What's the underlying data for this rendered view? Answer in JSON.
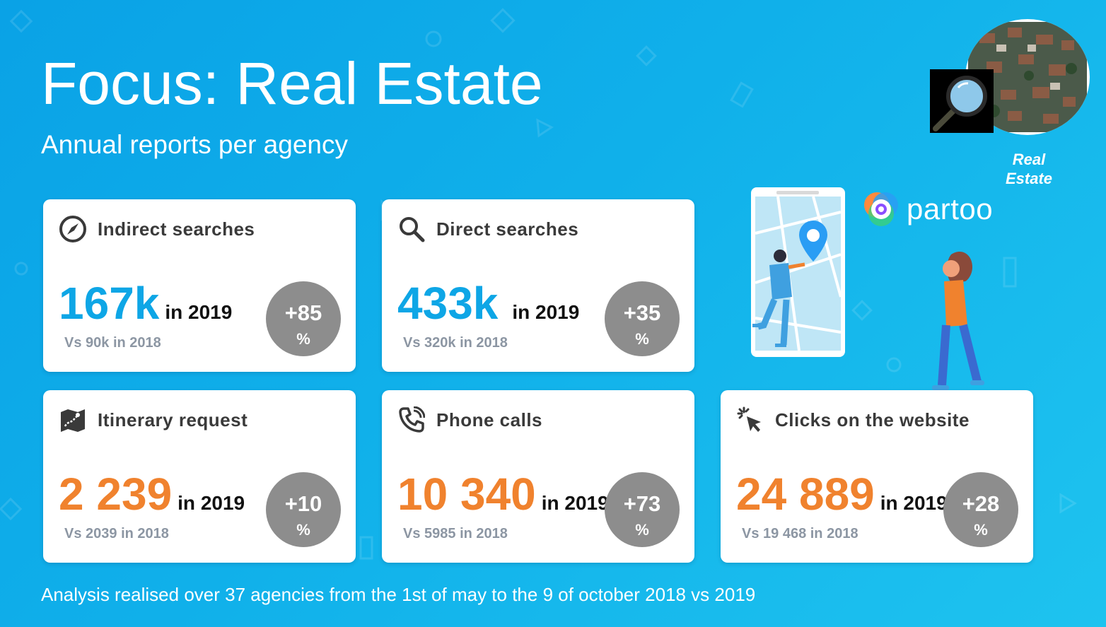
{
  "header": {
    "title": "Focus: Real Estate",
    "subtitle": "Annual reports per agency"
  },
  "footer": {
    "note": "Analysis realised over 37 agencies from the 1st of may to the 9 of october 2018 vs 2019"
  },
  "logo": {
    "caption_line1": "Real",
    "caption_line2": "Estate",
    "icon": "magnifier-icon"
  },
  "brand": {
    "name": "partoo"
  },
  "colors": {
    "background": "#10b0ea",
    "blue_value": "#0ea6e6",
    "orange_value": "#f0822e",
    "badge": "#8d8d8d"
  },
  "cards": [
    {
      "label": "Indirect searches",
      "icon": "compass-icon",
      "value": "167k",
      "year_text": "in 2019",
      "previous": "Vs 90k in 2018",
      "growth": "+85",
      "unit": "%",
      "color": "blue"
    },
    {
      "label": "Direct searches",
      "icon": "search-icon",
      "value": "433k",
      "year_text": "in 2019",
      "previous": "Vs 320k in 2018",
      "growth": "+35",
      "unit": "%",
      "color": "blue"
    },
    {
      "label": "Itinerary request",
      "icon": "map-icon",
      "value": "2 239",
      "year_text": "in 2019",
      "previous": "Vs 2039 in 2018",
      "growth": "+10",
      "unit": "%",
      "color": "orange"
    },
    {
      "label": "Phone calls",
      "icon": "phone-icon",
      "value": "10 340",
      "year_text": "in 2019",
      "previous": "Vs 5985 in 2018",
      "growth": "+73",
      "unit": "%",
      "color": "orange"
    },
    {
      "label": "Clicks on the website",
      "icon": "cursor-click-icon",
      "value": "24 889",
      "year_text": "in 2019",
      "previous": "Vs 19 468 in 2018",
      "growth": "+28",
      "unit": "%",
      "color": "orange"
    }
  ]
}
